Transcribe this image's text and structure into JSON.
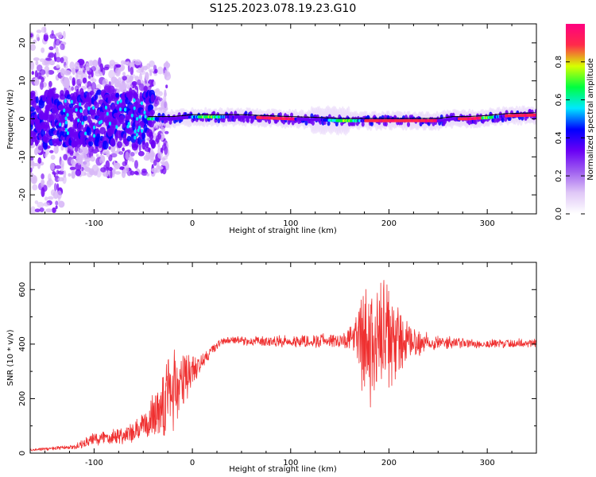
{
  "figure": {
    "title": "S125.2023.078.19.23.G10"
  },
  "chart_data": [
    {
      "type": "heatmap",
      "name": "spectrogram",
      "xlabel": "Height of straight line (km)",
      "ylabel": "Frequency (Hz)",
      "xlim": [
        -165,
        350
      ],
      "ylim": [
        -25,
        25
      ],
      "xticks": [
        -100,
        0,
        100,
        200,
        300
      ],
      "yticks": [
        -20,
        -10,
        0,
        10,
        20
      ],
      "grid": false,
      "colorbar": {
        "label": "Normalized spectral amplitude",
        "range": [
          0,
          1
        ],
        "ticks": [
          "0.0",
          "0.2",
          "0.4",
          "0.6",
          "0.8"
        ],
        "colormap": [
          "#ffffff",
          "#e0c8f7",
          "#a060f0",
          "#6a00f5",
          "#0000ff",
          "#00e8ff",
          "#00ff40",
          "#d8ff00",
          "#ff2a4a",
          "#ff0080"
        ]
      },
      "line_color": "#000000",
      "ridge": {
        "x": [
          -45,
          -20,
          0,
          50,
          100,
          125,
          150,
          200,
          250,
          265,
          280,
          300,
          320,
          350
        ],
        "freq_hz": [
          0,
          0,
          0.5,
          0.5,
          0,
          -0.2,
          -0.5,
          -0.5,
          -0.5,
          0,
          0,
          0.3,
          0.8,
          1.0
        ]
      }
    },
    {
      "type": "line",
      "name": "snr",
      "xlabel": "Height of straight line (km)",
      "ylabel": "SNR (10 * v/v)",
      "xlim": [
        -165,
        350
      ],
      "ylim": [
        0,
        700
      ],
      "xticks": [
        -100,
        0,
        100,
        200,
        300
      ],
      "yticks": [
        0,
        200,
        400,
        600
      ],
      "grid": false,
      "color": "#ef3030",
      "envelope": {
        "x": [
          -165,
          -120,
          -100,
          -80,
          -60,
          -45,
          -35,
          -20,
          -10,
          0,
          10,
          20,
          30,
          40,
          60,
          100,
          120,
          150,
          165,
          170,
          180,
          190,
          200,
          210,
          220,
          240,
          260,
          300,
          350
        ],
        "mean": [
          12,
          22,
          50,
          65,
          70,
          110,
          170,
          240,
          250,
          310,
          330,
          380,
          410,
          415,
          410,
          410,
          412,
          415,
          420,
          420,
          380,
          400,
          420,
          410,
          400,
          410,
          405,
          400,
          405
        ],
        "spread": [
          5,
          10,
          30,
          35,
          45,
          60,
          150,
          190,
          170,
          60,
          40,
          25,
          15,
          15,
          20,
          25,
          30,
          30,
          60,
          200,
          260,
          260,
          230,
          160,
          80,
          40,
          25,
          20,
          20
        ]
      }
    }
  ]
}
